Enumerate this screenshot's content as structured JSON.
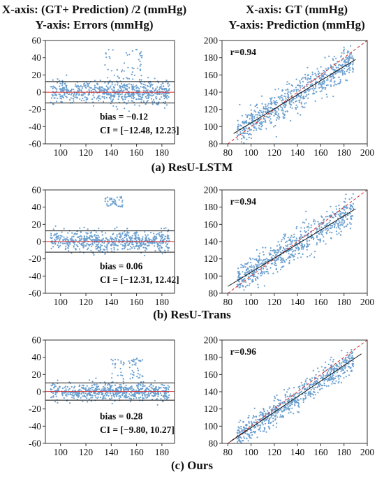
{
  "headers": {
    "left_line1": "X-axis: (GT+ Prediction) /2 (mmHg)",
    "left_line2": "Y-axis: Errors (mmHg)",
    "right_line1": "X-axis: GT (mmHg)",
    "right_line2": "Y-axis: Prediction (mmHg)"
  },
  "colors": {
    "points": "#6a9fcf",
    "bias_line": "#d62728",
    "limit_lines": "#111111",
    "fit_line": "#111111",
    "identity_line": "#d62728"
  },
  "chart_data": [
    {
      "type": "scatter",
      "subtype": "bland-altman",
      "panel": "a",
      "method": "ResU-LSTM",
      "caption": "(a) ResU-LSTM",
      "xlim": [
        88,
        190
      ],
      "ylim": [
        -60,
        60
      ],
      "xticks": [
        100,
        120,
        140,
        160,
        180
      ],
      "yticks": [
        -60,
        -40,
        -20,
        0,
        20,
        40,
        60
      ],
      "bias": -0.12,
      "ci": [
        -12.48,
        12.23
      ],
      "bias_label": "bias = −0.12",
      "ci_label": "CI = [−12.48, 12.23]",
      "points_approx": {
        "x_range": [
          92,
          186
        ],
        "center_error": 0,
        "spread": 12,
        "outlier_cluster": {
          "x": [
            135,
            165
          ],
          "y": [
            15,
            50
          ]
        }
      }
    },
    {
      "type": "scatter",
      "subtype": "correlation",
      "panel": "a",
      "method": "ResU-LSTM",
      "xlim": [
        75,
        200
      ],
      "ylim": [
        80,
        200
      ],
      "xticks": [
        80,
        100,
        120,
        140,
        160,
        180,
        200
      ],
      "yticks": [
        80,
        100,
        120,
        140,
        160,
        180,
        200
      ],
      "r": 0.94,
      "r_label": "r=0.94",
      "fit_line": {
        "x": [
          85,
          190
        ],
        "y": [
          92,
          178
        ]
      },
      "identity_line": {
        "x": [
          80,
          200
        ],
        "y": [
          80,
          200
        ]
      },
      "points_approx": {
        "gt_range": [
          88,
          188
        ],
        "spread": 9
      }
    },
    {
      "type": "scatter",
      "subtype": "bland-altman",
      "panel": "b",
      "method": "ResU-Trans",
      "caption": "(b) ResU-Trans",
      "xlim": [
        88,
        190
      ],
      "ylim": [
        -60,
        60
      ],
      "xticks": [
        100,
        120,
        140,
        160,
        180
      ],
      "yticks": [
        -60,
        -40,
        -20,
        0,
        20,
        40,
        60
      ],
      "bias": 0.06,
      "ci": [
        -12.31,
        12.42
      ],
      "bias_label": "bias = 0.06",
      "ci_label": "CI = [−12.31, 12.42]",
      "points_approx": {
        "x_range": [
          92,
          186
        ],
        "center_error": 0,
        "spread": 11,
        "outlier_cluster": {
          "x": [
            135,
            150
          ],
          "y": [
            40,
            52
          ]
        }
      }
    },
    {
      "type": "scatter",
      "subtype": "correlation",
      "panel": "b",
      "method": "ResU-Trans",
      "xlim": [
        75,
        200
      ],
      "ylim": [
        80,
        200
      ],
      "xticks": [
        80,
        100,
        120,
        140,
        160,
        180,
        200
      ],
      "yticks": [
        80,
        100,
        120,
        140,
        160,
        180,
        200
      ],
      "r": 0.94,
      "r_label": "r=0.94",
      "fit_line": {
        "x": [
          80,
          190
        ],
        "y": [
          88,
          178
        ]
      },
      "identity_line": {
        "x": [
          80,
          200
        ],
        "y": [
          80,
          200
        ]
      },
      "points_approx": {
        "gt_range": [
          88,
          188
        ],
        "spread": 9
      }
    },
    {
      "type": "scatter",
      "subtype": "bland-altman",
      "panel": "c",
      "method": "Ours",
      "caption": "(c) Ours",
      "xlim": [
        88,
        190
      ],
      "ylim": [
        -60,
        60
      ],
      "xticks": [
        100,
        120,
        140,
        160,
        180
      ],
      "yticks": [
        -60,
        -40,
        -20,
        0,
        20,
        40,
        60
      ],
      "bias": 0.28,
      "ci": [
        -9.8,
        10.27
      ],
      "bias_label": "bias = 0.28",
      "ci_label": "CI = [−9.80, 10.27]",
      "points_approx": {
        "x_range": [
          92,
          186
        ],
        "center_error": 0,
        "spread": 9,
        "outlier_cluster": {
          "x": [
            140,
            165
          ],
          "y": [
            15,
            40
          ]
        }
      }
    },
    {
      "type": "scatter",
      "subtype": "correlation",
      "panel": "c",
      "method": "Ours",
      "xlim": [
        75,
        200
      ],
      "ylim": [
        80,
        200
      ],
      "xticks": [
        80,
        100,
        120,
        140,
        160,
        180,
        200
      ],
      "yticks": [
        80,
        100,
        120,
        140,
        160,
        180,
        200
      ],
      "r": 0.96,
      "r_label": "r=0.96",
      "fit_line": {
        "x": [
          82,
          195
        ],
        "y": [
          82,
          184
        ]
      },
      "identity_line": {
        "x": [
          80,
          200
        ],
        "y": [
          80,
          200
        ]
      },
      "points_approx": {
        "gt_range": [
          88,
          188
        ],
        "spread": 7
      }
    }
  ]
}
